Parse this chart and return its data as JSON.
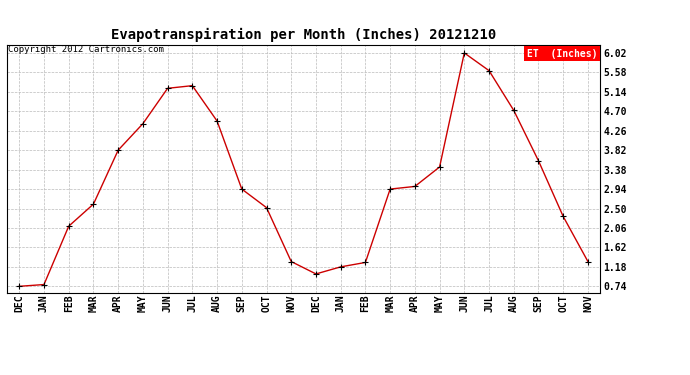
{
  "title": "Evapotranspiration per Month (Inches) 20121210",
  "copyright": "Copyright 2012 Cartronics.com",
  "legend_label": "ET  (Inches)",
  "months": [
    "DEC",
    "JAN",
    "FEB",
    "MAR",
    "APR",
    "MAY",
    "JUN",
    "JUL",
    "AUG",
    "SEP",
    "OCT",
    "NOV",
    "DEC",
    "JAN",
    "FEB",
    "MAR",
    "APR",
    "MAY",
    "JUN",
    "JUL",
    "AUG",
    "SEP",
    "OCT",
    "NOV"
  ],
  "values": [
    0.74,
    0.78,
    2.1,
    2.6,
    3.82,
    4.42,
    5.22,
    5.28,
    4.48,
    2.94,
    2.52,
    1.3,
    1.02,
    1.18,
    1.28,
    2.94,
    3.0,
    3.44,
    6.02,
    5.62,
    4.72,
    3.58,
    2.32,
    1.3
  ],
  "line_color": "#cc0000",
  "marker_color": "#000000",
  "yticks": [
    0.74,
    1.18,
    1.62,
    2.06,
    2.5,
    2.94,
    3.38,
    3.82,
    4.26,
    4.7,
    5.14,
    5.58,
    6.02
  ],
  "ylim": [
    0.6,
    6.2
  ],
  "bg_color": "#ffffff",
  "grid_color": "#bbbbbb",
  "title_fontsize": 10,
  "tick_fontsize": 7,
  "copyright_fontsize": 6.5,
  "figsize": [
    6.9,
    3.75
  ],
  "dpi": 100
}
